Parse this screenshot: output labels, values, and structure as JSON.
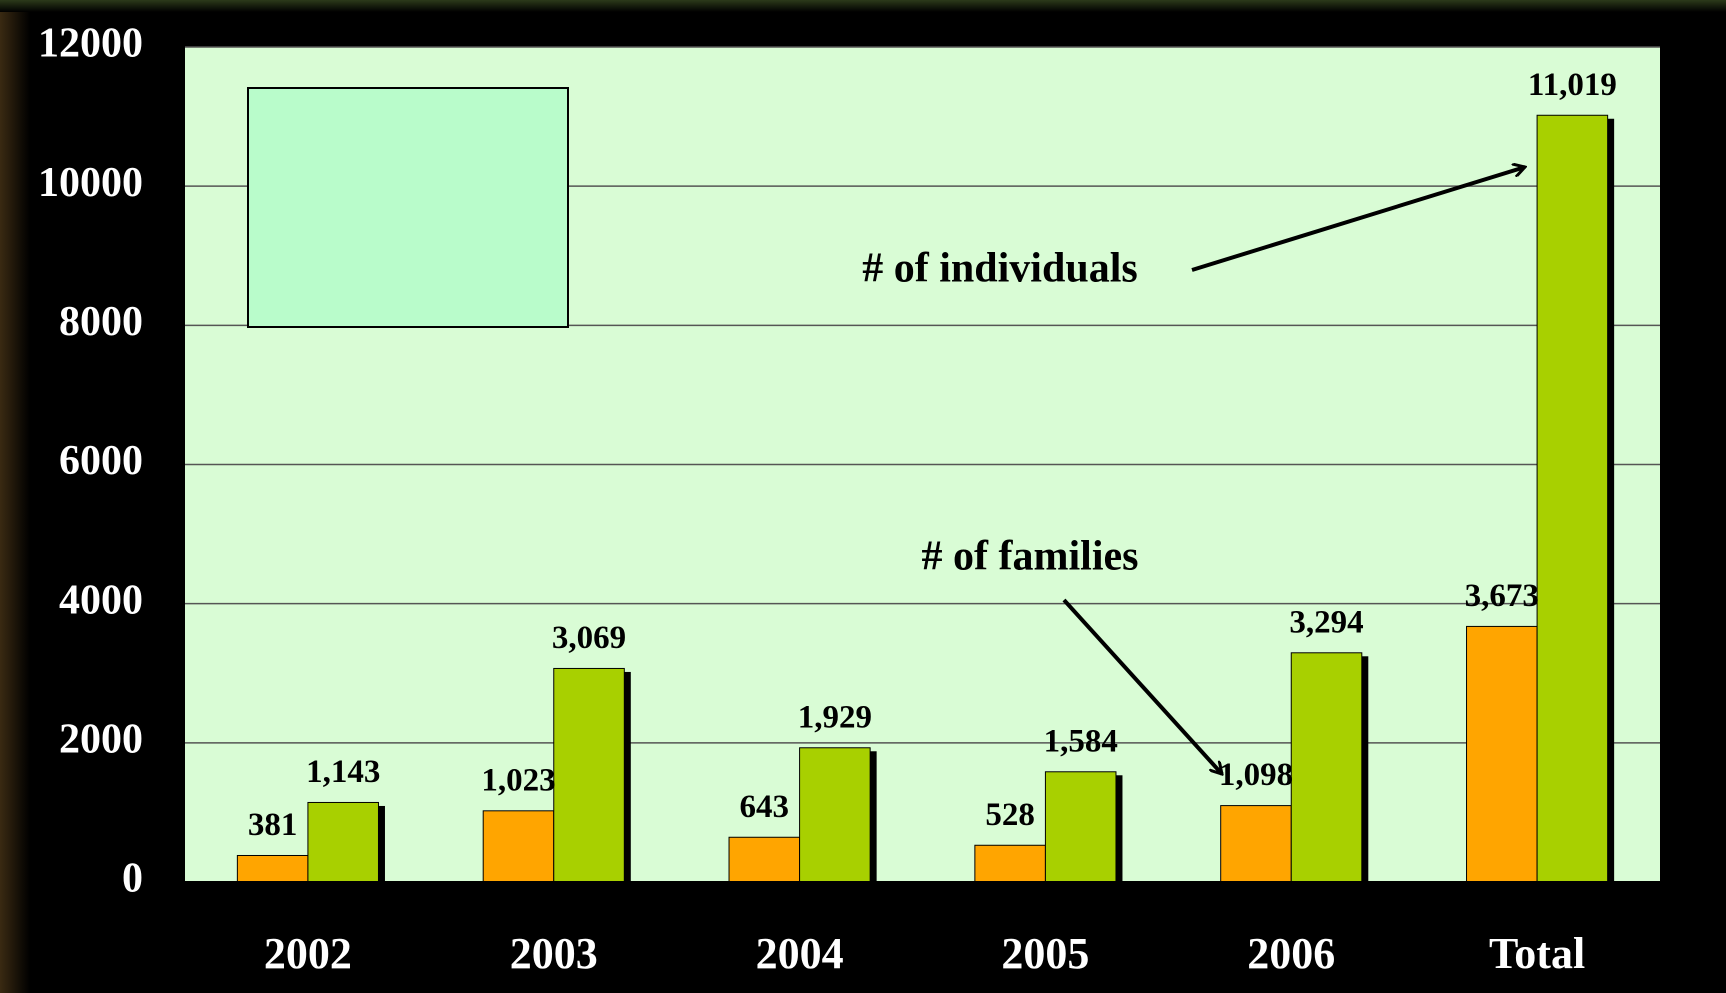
{
  "chart_data": {
    "type": "bar",
    "categories": [
      "2002",
      "2003",
      "2004",
      "2005",
      "2006",
      "Total"
    ],
    "series": [
      {
        "name": "# of families",
        "color": "#ffa500",
        "values": [
          381,
          1023,
          643,
          528,
          1098,
          3673
        ],
        "value_labels": [
          "381",
          "1,023",
          "643",
          "528",
          "1,098",
          "3,673"
        ]
      },
      {
        "name": "# of individuals",
        "color": "#a8d000",
        "values": [
          1143,
          3069,
          1929,
          1584,
          3294,
          11019
        ],
        "value_labels": [
          "1,143",
          "3,069",
          "1,929",
          "1,584",
          "3,294",
          "11,019"
        ]
      }
    ],
    "ylim": [
      0,
      12000
    ],
    "yticks": [
      0,
      2000,
      4000,
      6000,
      8000,
      10000,
      12000
    ],
    "grid": true
  }
}
